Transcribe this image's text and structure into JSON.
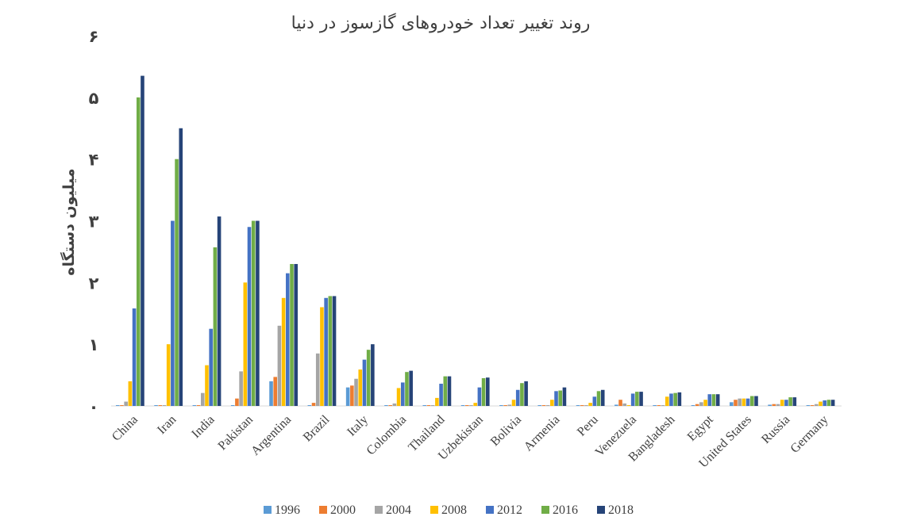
{
  "chart_data": {
    "type": "bar",
    "title": "روند تغییر تعداد خودروهای گازسوز در دنیا",
    "xlabel": "",
    "ylabel": "میلیون دستگاه",
    "ylim": [
      0,
      6
    ],
    "yticks": [
      {
        "value": 0,
        "label": "۰"
      },
      {
        "value": 1,
        "label": "۱"
      },
      {
        "value": 2,
        "label": "۲"
      },
      {
        "value": 3,
        "label": "۳"
      },
      {
        "value": 4,
        "label": "۴"
      },
      {
        "value": 5,
        "label": "۵"
      },
      {
        "value": 6,
        "label": "۶"
      }
    ],
    "grid": false,
    "legend_position": "bottom",
    "categories": [
      "China",
      "Iran",
      "India",
      "Pakistan",
      "Argentina",
      "Brazil",
      "Italy",
      "Colombia",
      "Thailand",
      "Uzbekistan",
      "Bolivia",
      "Armenia",
      "Peru",
      "Venezuela",
      "Bangladesh",
      "Egypt",
      "United States",
      "Russia",
      "Germany"
    ],
    "series": [
      {
        "name": "1996",
        "color": "#5b9bd5",
        "values": [
          0.0,
          0.0,
          0.0,
          0.0,
          0.4,
          0.0,
          0.3,
          0.0,
          0.0,
          0.0,
          0.0,
          0.0,
          0.0,
          0.02,
          0.0,
          0.0,
          0.06,
          0.02,
          0.0
        ]
      },
      {
        "name": "2000",
        "color": "#ed7d31",
        "values": [
          0.0,
          0.0,
          0.0,
          0.12,
          0.47,
          0.05,
          0.33,
          0.0,
          0.0,
          0.0,
          0.0,
          0.0,
          0.0,
          0.1,
          0.0,
          0.03,
          0.1,
          0.03,
          0.01
        ]
      },
      {
        "name": "2004",
        "color": "#a5a5a5",
        "values": [
          0.07,
          0.0,
          0.21,
          0.56,
          1.3,
          0.85,
          0.44,
          0.04,
          0.0,
          0.0,
          0.02,
          0.0,
          0.0,
          0.04,
          0.0,
          0.06,
          0.12,
          0.03,
          0.03
        ]
      },
      {
        "name": "2008",
        "color": "#ffc000",
        "values": [
          0.4,
          1.0,
          0.66,
          2.0,
          1.75,
          1.6,
          0.59,
          0.29,
          0.13,
          0.05,
          0.1,
          0.1,
          0.05,
          0.0,
          0.15,
          0.1,
          0.12,
          0.1,
          0.07
        ]
      },
      {
        "name": "2012",
        "color": "#4472c4",
        "values": [
          1.58,
          3.0,
          1.25,
          2.9,
          2.15,
          1.75,
          0.75,
          0.38,
          0.36,
          0.3,
          0.26,
          0.24,
          0.15,
          0.2,
          0.2,
          0.19,
          0.12,
          0.1,
          0.09
        ]
      },
      {
        "name": "2016",
        "color": "#70ad47",
        "values": [
          5.0,
          4.0,
          2.57,
          3.0,
          2.3,
          1.78,
          0.91,
          0.55,
          0.48,
          0.45,
          0.37,
          0.25,
          0.24,
          0.23,
          0.21,
          0.19,
          0.16,
          0.14,
          0.1
        ]
      },
      {
        "name": "2018",
        "color": "#264478",
        "values": [
          5.35,
          4.5,
          3.07,
          3.0,
          2.3,
          1.78,
          1.0,
          0.57,
          0.48,
          0.46,
          0.4,
          0.3,
          0.26,
          0.23,
          0.22,
          0.19,
          0.16,
          0.14,
          0.1
        ]
      }
    ]
  }
}
